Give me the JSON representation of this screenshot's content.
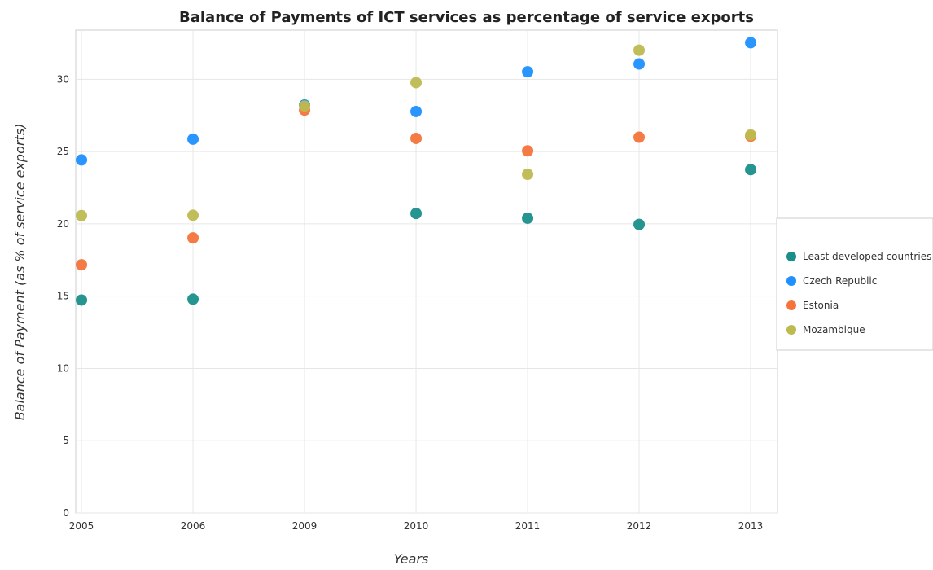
{
  "chart_data": {
    "type": "scatter",
    "title": "Balance of Payments of ICT services as percentage of service exports",
    "xlabel": "Years",
    "ylabel": "Balance of Payment (as % of service exports)",
    "categories": [
      "2005",
      "2006",
      "2009",
      "2010",
      "2011",
      "2012",
      "2013"
    ],
    "ylim": [
      0,
      33.4
    ],
    "yticks": [
      0,
      5,
      10,
      15,
      20,
      25,
      30
    ],
    "grid": true,
    "legend_position": "right",
    "series": [
      {
        "name": "Least developed countries",
        "color": "#1a8f8a",
        "values": [
          14.73,
          14.79,
          28.22,
          20.72,
          20.39,
          19.96,
          23.75
        ]
      },
      {
        "name": "Czech Republic",
        "color": "#1e90ff",
        "values": [
          24.42,
          25.86,
          28.2,
          27.77,
          30.52,
          31.06,
          32.53
        ]
      },
      {
        "name": "Estonia",
        "color": "#f4743b",
        "values": [
          17.17,
          19.03,
          27.87,
          25.91,
          25.05,
          25.99,
          26.06
        ]
      },
      {
        "name": "Mozambique",
        "color": "#bdbb4f",
        "values": [
          20.57,
          20.59,
          28.15,
          29.77,
          23.43,
          32.01,
          26.15
        ]
      }
    ]
  }
}
